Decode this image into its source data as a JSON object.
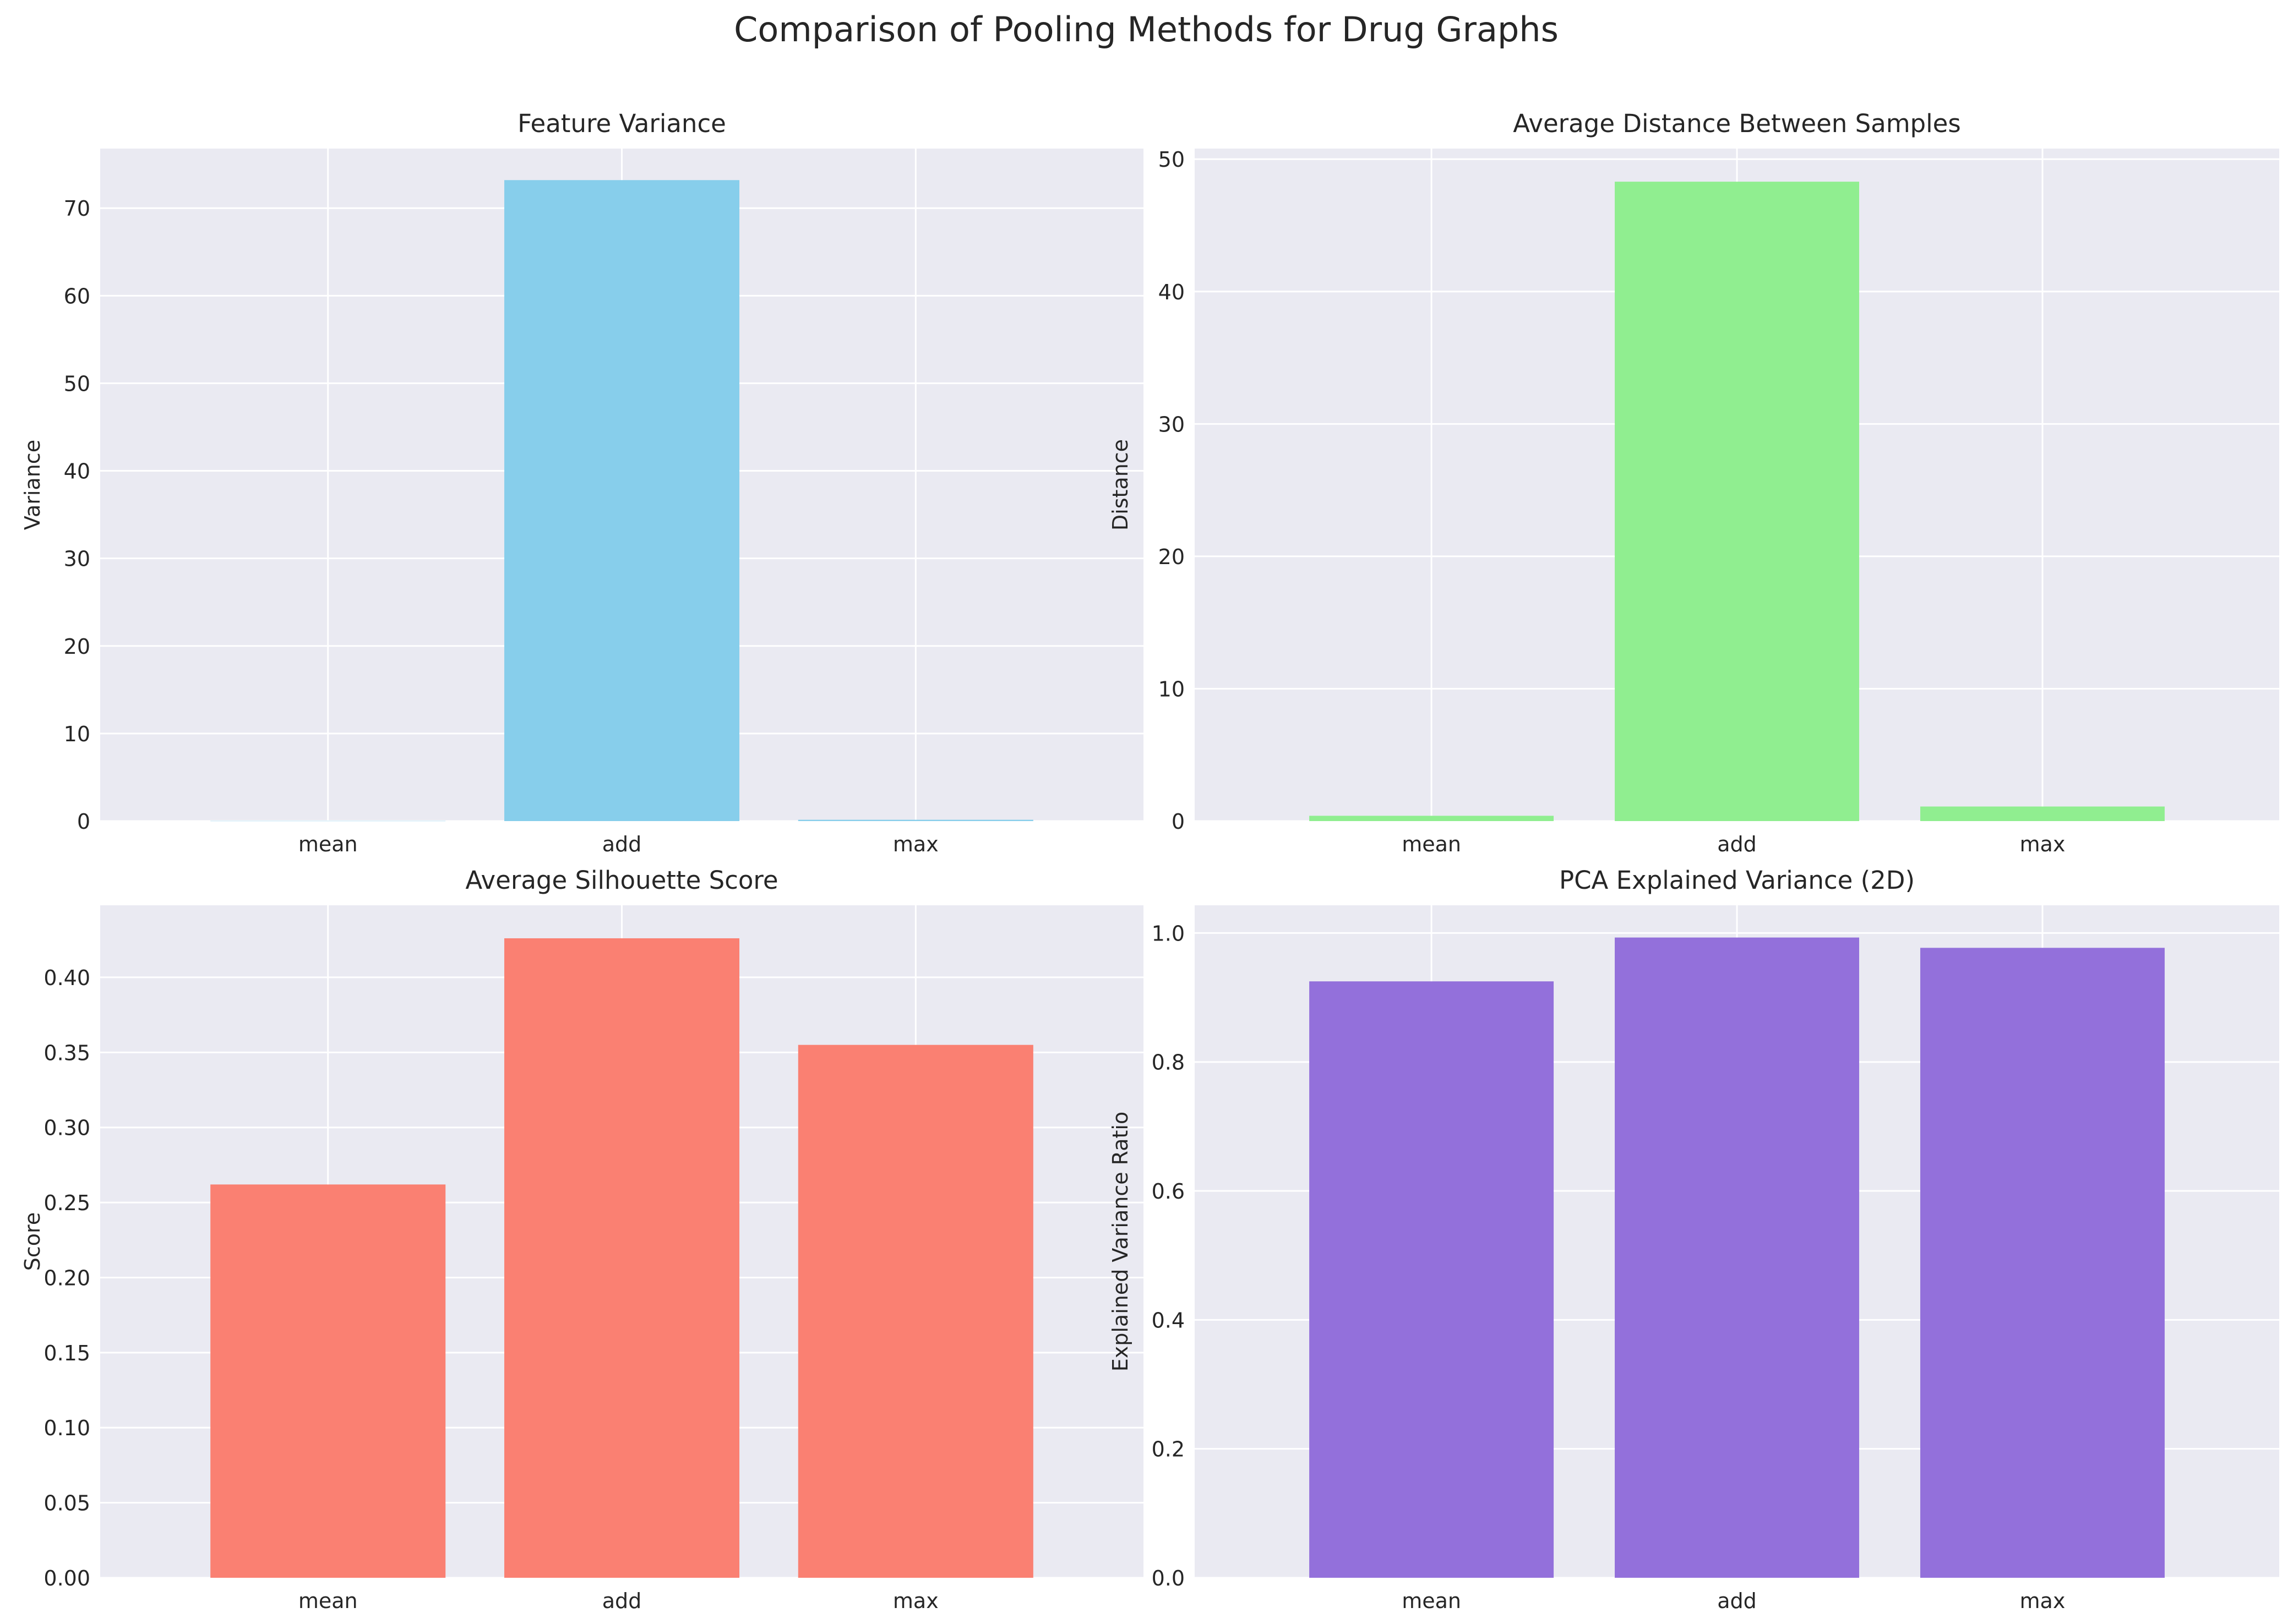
{
  "figure_title": "Comparison of Pooling Methods for Drug Graphs",
  "chart_data": [
    {
      "type": "bar",
      "title": "Feature Variance",
      "xlabel": "",
      "ylabel": "Variance",
      "categories": [
        "mean",
        "add",
        "max"
      ],
      "values": [
        0.02,
        73.2,
        0.15
      ],
      "ylim": [
        0,
        76.8
      ],
      "yticks": [
        0,
        10,
        20,
        30,
        40,
        50,
        60,
        70
      ],
      "tick_decimals": 0,
      "grid": true,
      "color": "#87CEEB"
    },
    {
      "type": "bar",
      "title": "Average Distance Between Samples",
      "xlabel": "",
      "ylabel": "Distance",
      "categories": [
        "mean",
        "add",
        "max"
      ],
      "values": [
        0.4,
        48.3,
        1.1
      ],
      "ylim": [
        0,
        50.8
      ],
      "yticks": [
        0,
        10,
        20,
        30,
        40,
        50
      ],
      "tick_decimals": 0,
      "grid": true,
      "color": "#90EE90"
    },
    {
      "type": "bar",
      "title": "Average Silhouette Score",
      "xlabel": "",
      "ylabel": "Score",
      "categories": [
        "mean",
        "add",
        "max"
      ],
      "values": [
        0.262,
        0.426,
        0.355
      ],
      "ylim": [
        0,
        0.448
      ],
      "yticks": [
        0,
        0.05,
        0.1,
        0.15,
        0.2,
        0.25,
        0.3,
        0.35,
        0.4
      ],
      "tick_decimals": 2,
      "grid": true,
      "color": "#FA8072"
    },
    {
      "type": "bar",
      "title": "PCA Explained Variance (2D)",
      "xlabel": "",
      "ylabel": "Explained Variance Ratio",
      "categories": [
        "mean",
        "add",
        "max"
      ],
      "values": [
        0.925,
        0.993,
        0.977
      ],
      "ylim": [
        0,
        1.043
      ],
      "yticks": [
        0,
        0.2,
        0.4,
        0.6,
        0.8,
        1.0
      ],
      "tick_decimals": 1,
      "grid": true,
      "color": "#9370DB"
    }
  ],
  "style": {
    "axes_background": "#EAEAF2",
    "grid_color": "#FFFFFF",
    "text_color": "#262626"
  }
}
